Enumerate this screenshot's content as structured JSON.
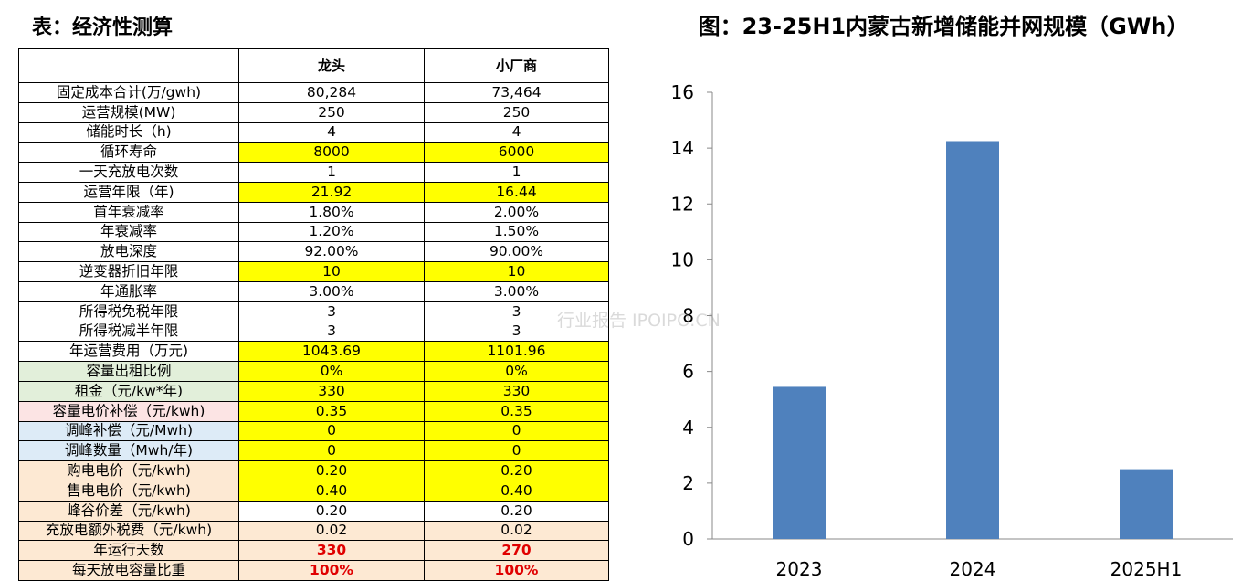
{
  "table": {
    "title": "表：经济性测算",
    "header": [
      "龙头",
      "小厂商"
    ],
    "rows": [
      [
        "固定成本合计(万/gwh)",
        "80,284",
        "73,464"
      ],
      [
        "运营规模(MW)",
        "250",
        "250"
      ],
      [
        "储能时长（h)",
        "4",
        "4"
      ],
      [
        "循环寿命",
        "8000",
        "6000"
      ],
      [
        "一天充放电次数",
        "1",
        "1"
      ],
      [
        "运营年限（年)",
        "21.92",
        "16.44"
      ],
      [
        "首年衰减率",
        "1.80%",
        "2.00%"
      ],
      [
        "年衰减率",
        "1.20%",
        "1.50%"
      ],
      [
        "放电深度",
        "92.00%",
        "90.00%"
      ],
      [
        "逆变器折旧年限",
        "10",
        "10"
      ],
      [
        "年通胀率",
        "3.00%",
        "3.00%"
      ],
      [
        "所得税免税年限",
        "3",
        "3"
      ],
      [
        "所得税减半年限",
        "3",
        "3"
      ],
      [
        "年运营费用（万元)",
        "1043.69",
        "1101.96"
      ],
      [
        "容量出租比例",
        "0%",
        "0%"
      ],
      [
        "租金（元/kw*年)",
        "330",
        "330"
      ],
      [
        "容量电价补偿（元/kwh)",
        "0.35",
        "0.35"
      ],
      [
        "调峰补偿（元/Mwh)",
        "0",
        "0"
      ],
      [
        "调峰数量（Mwh/年)",
        "0",
        "0"
      ],
      [
        "购电电价（元/kwh)",
        "0.20",
        "0.20"
      ],
      [
        "售电电价（元/kwh)",
        "0.40",
        "0.40"
      ],
      [
        "峰谷价差（元/kwh)",
        "0.20",
        "0.20"
      ],
      [
        "充放电额外税费（元/kwh)",
        "0.02",
        "0.02"
      ],
      [
        "年运行天数",
        "330",
        "270"
      ],
      [
        "每天放电容量比重",
        "100%",
        "100%"
      ]
    ]
  },
  "chart_data": {
    "type": "bar",
    "title": "图：23-25H1内蒙古新增储能并网规模（GWh）",
    "categories": [
      "2023",
      "2024",
      "2025H1"
    ],
    "values": [
      5.45,
      14.25,
      2.5
    ],
    "color": "#4f81bd",
    "ylim": [
      0,
      16
    ],
    "yticks": [
      0,
      2,
      4,
      6,
      8,
      10,
      12,
      14,
      16
    ],
    "grid": false
  },
  "watermark": "行业报告 IPOIPO.CN"
}
